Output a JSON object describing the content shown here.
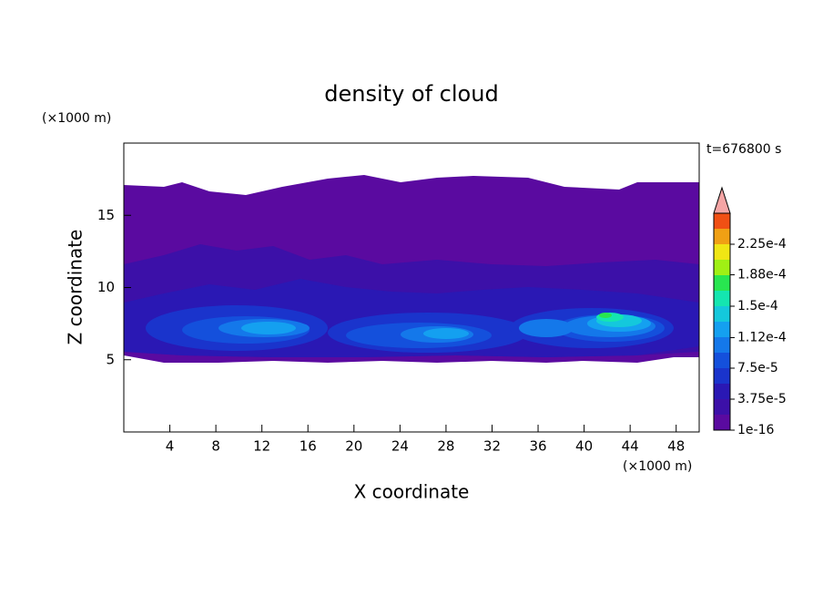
{
  "chart_data": {
    "type": "contour",
    "title": "density of cloud",
    "x_label": "X coordinate",
    "y_label": "Z coordinate",
    "x_unit_label": "(×1000 m)",
    "y_unit_label": "(×1000 m)",
    "annotation": "t=676800 s",
    "xlim": [
      0,
      50
    ],
    "xticks": [
      4,
      8,
      12,
      16,
      20,
      24,
      28,
      32,
      36,
      40,
      44,
      48
    ],
    "ylim": [
      0,
      20
    ],
    "yticks": [
      5,
      10,
      15
    ],
    "colorbar": {
      "clim": [
        1e-16,
        0.0002625
      ],
      "ticks": [
        {
          "value": 1e-16,
          "label": "1e-16"
        },
        {
          "value": 3.75e-05,
          "label": "3.75e-5"
        },
        {
          "value": 7.5e-05,
          "label": "7.5e-5"
        },
        {
          "value": 0.000112,
          "label": "1.12e-4"
        },
        {
          "value": 0.00015,
          "label": "1.5e-4"
        },
        {
          "value": 0.000188,
          "label": "1.88e-4"
        },
        {
          "value": 0.000225,
          "label": "2.25e-4"
        }
      ],
      "colors": [
        "#5a0aa0",
        "#3c10a8",
        "#2a18b4",
        "#1a34cc",
        "#1450dc",
        "#1478ea",
        "#14a0f0",
        "#14c8dc",
        "#14e6b0",
        "#28e650",
        "#a0f014",
        "#f0e614",
        "#f0a014",
        "#f05014"
      ],
      "over_color": "#f5a5a5"
    }
  }
}
